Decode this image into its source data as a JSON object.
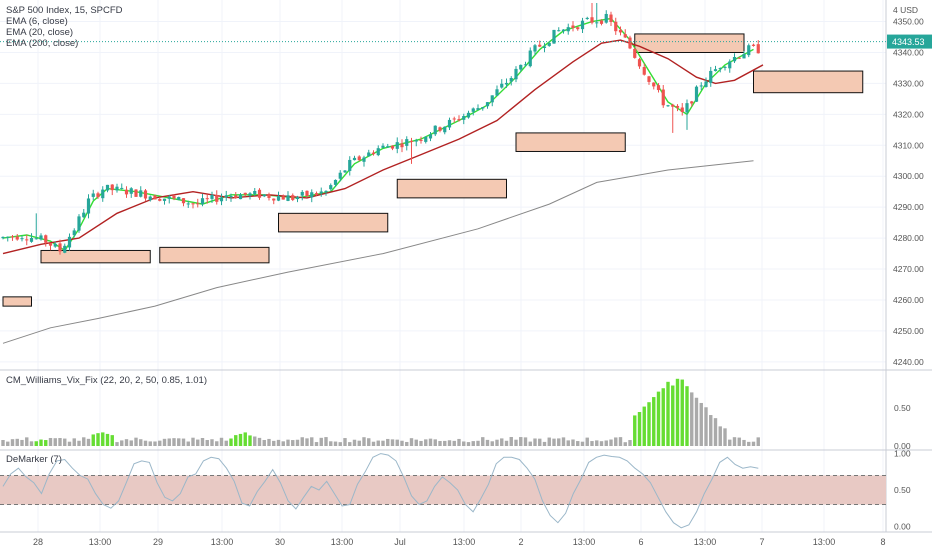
{
  "header": {
    "title": "S&P 500 Index, 15, SPCFD",
    "studies": [
      "EMA (6, close)",
      "EMA (20, close)",
      "EMA (200, close)"
    ],
    "currency": "USD"
  },
  "panes": {
    "vix_label": "CM_Williams_Vix_Fix (22, 20, 2, 50, 0.85, 1.01)",
    "demarker_label": "DeMarker (7)"
  },
  "colors": {
    "up": "#26a69a",
    "down": "#ef5350",
    "ema6": "#33dd33",
    "ema20": "#b22222",
    "ema200": "#888888",
    "box_fill": "#f4c9b3",
    "vix_green": "#66dd33",
    "vix_gray": "#aaaaaa",
    "dem_line": "#9bb7c9",
    "dem_band": "#e8c9c4"
  },
  "chart_data": [
    {
      "type": "candlestick",
      "title": "S&P 500 Index, 15, SPCFD",
      "x_ticks": [
        "28",
        "13:00",
        "29",
        "13:00",
        "30",
        "13:00",
        "Jul",
        "13:00",
        "2",
        "13:00",
        "6",
        "13:00",
        "7",
        "13:00",
        "8"
      ],
      "y_ticks": [
        4240,
        4250,
        4260,
        4270,
        4280,
        4290,
        4300,
        4310,
        4320,
        4330,
        4340,
        4350
      ],
      "ylim": [
        4238,
        4356
      ],
      "last_price": "4343.53",
      "series": [
        {
          "name": "EMA (6, close)",
          "points": [
            [
              0,
              4280
            ],
            [
              5,
              4281
            ],
            [
              10,
              4279
            ],
            [
              13,
              4276
            ],
            [
              16,
              4283
            ],
            [
              19,
              4292
            ],
            [
              22,
              4296
            ],
            [
              28,
              4295
            ],
            [
              35,
              4293
            ],
            [
              42,
              4291
            ],
            [
              48,
              4294
            ],
            [
              55,
              4294
            ],
            [
              62,
              4293
            ],
            [
              69,
              4295
            ],
            [
              74,
              4304
            ],
            [
              80,
              4309
            ],
            [
              88,
              4312
            ],
            [
              96,
              4318
            ],
            [
              102,
              4323
            ],
            [
              108,
              4332
            ],
            [
              113,
              4341
            ],
            [
              118,
              4347
            ],
            [
              124,
              4350
            ],
            [
              128,
              4351
            ],
            [
              132,
              4344
            ],
            [
              136,
              4334
            ],
            [
              140,
              4324
            ],
            [
              144,
              4320
            ],
            [
              148,
              4330
            ],
            [
              152,
              4336
            ],
            [
              158,
              4341
            ]
          ]
        },
        {
          "name": "EMA (20, close)",
          "points": [
            [
              0,
              4275
            ],
            [
              8,
              4278
            ],
            [
              16,
              4280
            ],
            [
              24,
              4288
            ],
            [
              32,
              4293
            ],
            [
              40,
              4295
            ],
            [
              48,
              4293
            ],
            [
              56,
              4294
            ],
            [
              64,
              4293
            ],
            [
              72,
              4296
            ],
            [
              80,
              4302
            ],
            [
              88,
              4307
            ],
            [
              96,
              4312
            ],
            [
              104,
              4318
            ],
            [
              112,
              4328
            ],
            [
              120,
              4337
            ],
            [
              126,
              4343
            ],
            [
              130,
              4344
            ],
            [
              134,
              4342
            ],
            [
              140,
              4338
            ],
            [
              146,
              4332
            ],
            [
              150,
              4330
            ],
            [
              154,
              4331
            ],
            [
              160,
              4336
            ]
          ]
        },
        {
          "name": "EMA (200, close)",
          "points": [
            [
              0,
              4246
            ],
            [
              10,
              4251
            ],
            [
              20,
              4254
            ],
            [
              32,
              4258
            ],
            [
              45,
              4264
            ],
            [
              60,
              4269
            ],
            [
              80,
              4275
            ],
            [
              100,
              4283
            ],
            [
              115,
              4291
            ],
            [
              125,
              4298
            ],
            [
              140,
              4302
            ],
            [
              158,
              4305
            ]
          ]
        }
      ],
      "zones": [
        {
          "bar": [
            0,
            6
          ],
          "price": [
            4258,
            4261
          ]
        },
        {
          "bar": [
            8,
            31
          ],
          "price": [
            4272,
            4276
          ]
        },
        {
          "bar": [
            33,
            56
          ],
          "price": [
            4272,
            4277
          ]
        },
        {
          "bar": [
            58,
            81
          ],
          "price": [
            4282,
            4288
          ]
        },
        {
          "bar": [
            83,
            106
          ],
          "price": [
            4293,
            4299
          ]
        },
        {
          "bar": [
            108,
            131
          ],
          "price": [
            4308,
            4314
          ]
        },
        {
          "bar": [
            133,
            156
          ],
          "price": [
            4340,
            4346
          ]
        },
        {
          "bar": [
            158,
            181
          ],
          "price": [
            4327,
            4334
          ]
        }
      ]
    },
    {
      "type": "bar",
      "title": "CM_Williams_Vix_Fix (22, 20, 2, 50, 0.85, 1.01)",
      "y_ticks": [
        0.0,
        0.5
      ],
      "ylim": [
        0,
        0.98
      ],
      "green_ranges": [
        [
          7,
          9
        ],
        [
          19,
          23
        ],
        [
          48,
          52
        ],
        [
          133,
          144
        ]
      ],
      "peaks": [
        [
          20,
          0.17
        ],
        [
          21,
          0.18
        ],
        [
          22,
          0.16
        ],
        [
          50,
          0.16
        ],
        [
          51,
          0.18
        ],
        [
          52,
          0.14
        ],
        [
          134,
          0.45
        ],
        [
          136,
          0.58
        ],
        [
          138,
          0.72
        ],
        [
          140,
          0.85
        ],
        [
          142,
          0.89
        ],
        [
          143,
          0.88
        ],
        [
          145,
          0.71
        ],
        [
          147,
          0.57
        ],
        [
          149,
          0.41
        ],
        [
          151,
          0.26
        ]
      ]
    },
    {
      "type": "line",
      "title": "DeMarker (7)",
      "y_ticks": [
        0.0,
        0.5,
        1.0
      ],
      "ylim": [
        -0.05,
        1.05
      ],
      "band": [
        0.3,
        0.7
      ],
      "values": [
        0.55,
        0.72,
        0.8,
        0.68,
        0.6,
        0.45,
        0.72,
        0.9,
        0.92,
        0.8,
        0.7,
        0.65,
        0.45,
        0.3,
        0.25,
        0.35,
        0.6,
        0.86,
        0.9,
        0.88,
        0.6,
        0.4,
        0.35,
        0.45,
        0.68,
        0.72,
        0.9,
        0.95,
        0.93,
        0.8,
        0.62,
        0.32,
        0.28,
        0.48,
        0.62,
        0.78,
        0.6,
        0.35,
        0.24,
        0.4,
        0.55,
        0.5,
        0.62,
        0.45,
        0.28,
        0.3,
        0.58,
        0.75,
        0.95,
        1.0,
        0.98,
        0.9,
        0.68,
        0.42,
        0.3,
        0.35,
        0.55,
        0.68,
        0.6,
        0.5,
        0.3,
        0.2,
        0.38,
        0.58,
        0.86,
        0.95,
        0.95,
        0.92,
        0.8,
        0.65,
        0.35,
        0.15,
        0.05,
        0.18,
        0.45,
        0.65,
        0.88,
        0.95,
        0.98,
        0.96,
        0.95,
        0.9,
        0.8,
        0.72,
        0.6,
        0.4,
        0.2,
        0.05,
        -0.02,
        0.02,
        0.2,
        0.45,
        0.65,
        0.88,
        0.95,
        0.85,
        0.8,
        0.82,
        0.8
      ]
    }
  ]
}
